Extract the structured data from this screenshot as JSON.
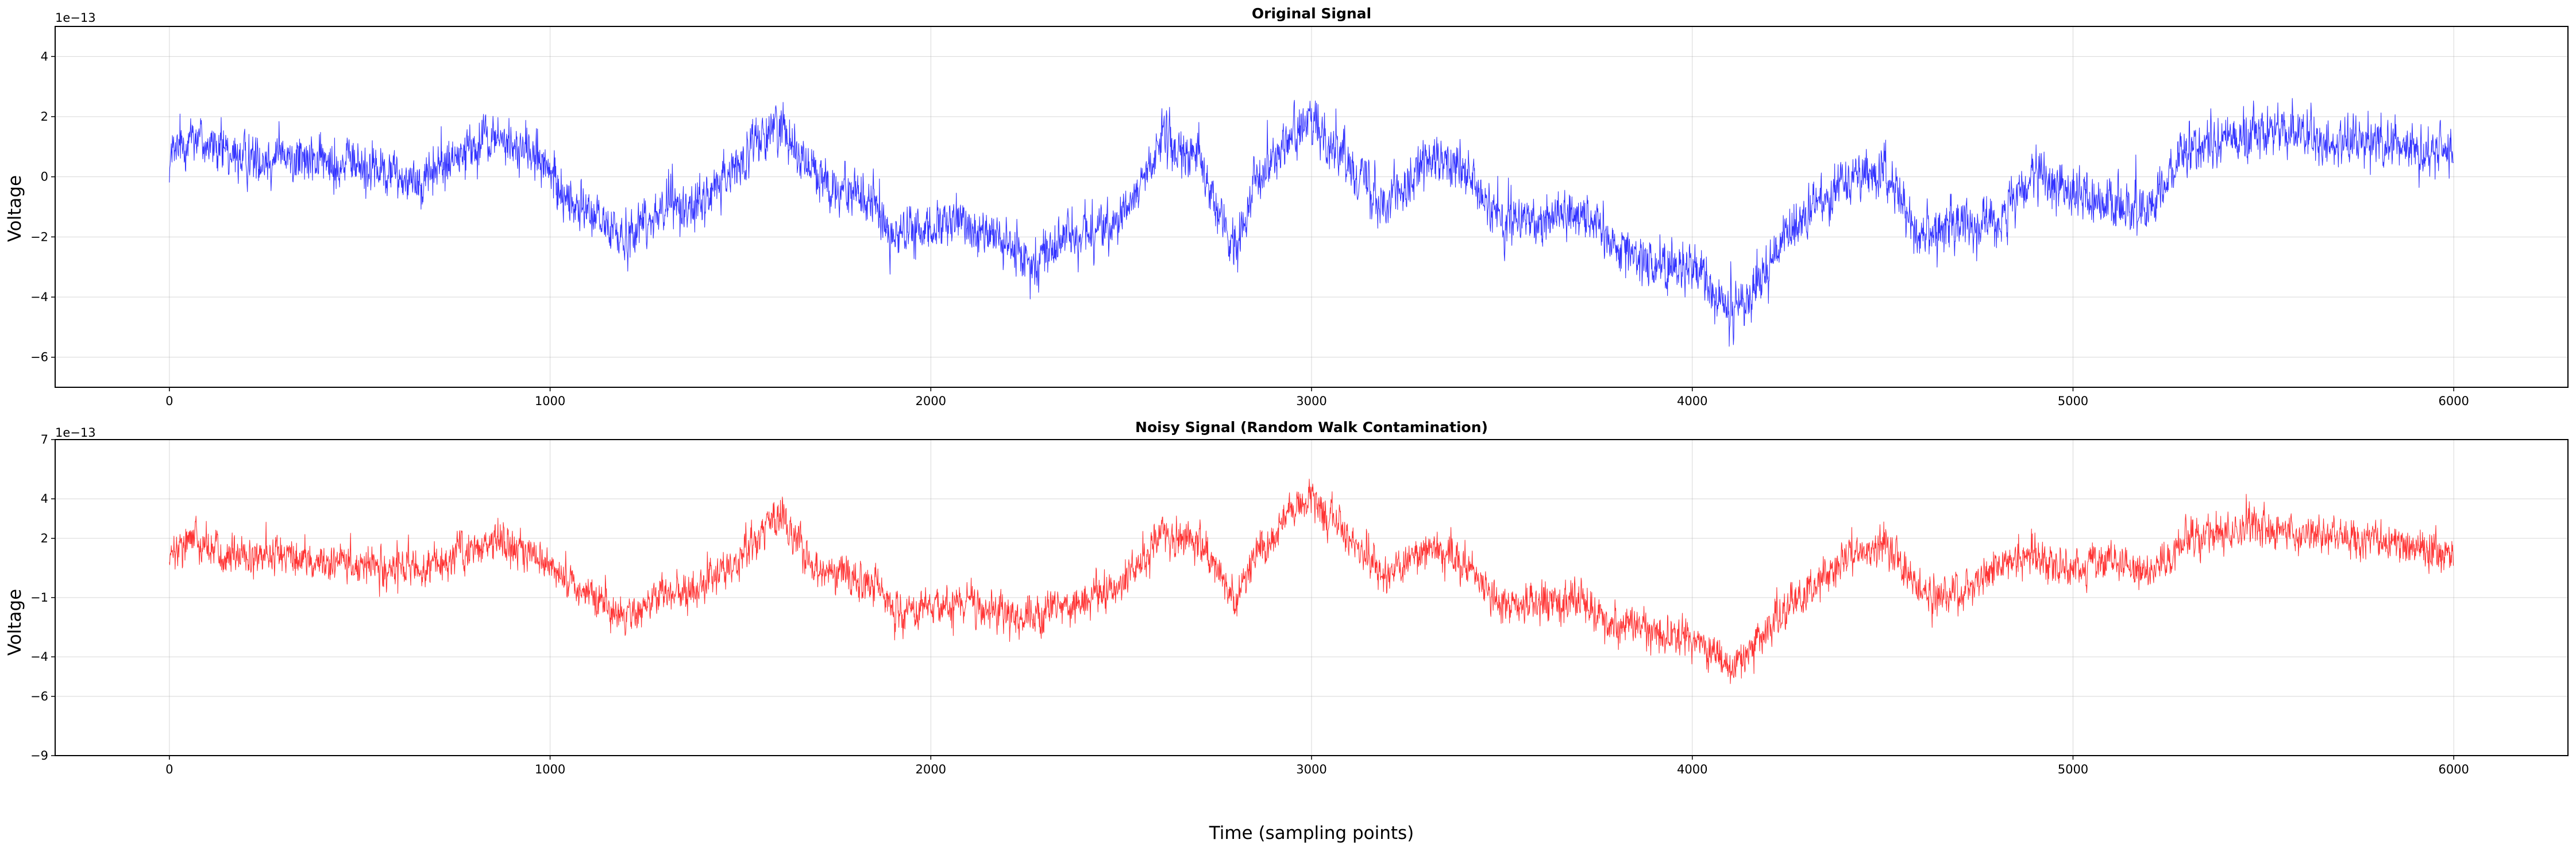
{
  "chart_data": [
    {
      "type": "line",
      "title": "Original Signal",
      "xlabel": "",
      "ylabel": "Voltage",
      "y_scale_label": "1e−13",
      "xlim": [
        -300,
        6300
      ],
      "ylim": [
        -7,
        5
      ],
      "xticks": [
        0,
        1000,
        2000,
        3000,
        4000,
        5000,
        6000
      ],
      "xtick_labels": [
        "0",
        "1000",
        "2000",
        "3000",
        "4000",
        "5000",
        "6000"
      ],
      "yticks": [
        4,
        2,
        0,
        -2,
        -4,
        -6
      ],
      "ytick_labels": [
        "4",
        "2",
        "0",
        "−2",
        "−4",
        "−6"
      ],
      "grid": true,
      "series": [
        {
          "color": "#0000ff",
          "n_points": 6000,
          "noise_amplitude": 1.15,
          "trend": [
            [
              0,
              0.5
            ],
            [
              60,
              1.5
            ],
            [
              150,
              0.6
            ],
            [
              300,
              0.6
            ],
            [
              500,
              0.4
            ],
            [
              650,
              -0.1
            ],
            [
              850,
              1.3
            ],
            [
              950,
              0.8
            ],
            [
              1050,
              -0.8
            ],
            [
              1200,
              -2.0
            ],
            [
              1300,
              -1.0
            ],
            [
              1400,
              -0.9
            ],
            [
              1500,
              0.5
            ],
            [
              1600,
              1.8
            ],
            [
              1700,
              0.0
            ],
            [
              1850,
              -0.9
            ],
            [
              1900,
              -2.0
            ],
            [
              2100,
              -1.5
            ],
            [
              2250,
              -2.8
            ],
            [
              2400,
              -1.8
            ],
            [
              2500,
              -1.6
            ],
            [
              2600,
              1.2
            ],
            [
              2700,
              0.6
            ],
            [
              2800,
              -2.5
            ],
            [
              2850,
              0.0
            ],
            [
              2950,
              1.4
            ],
            [
              3000,
              1.8
            ],
            [
              3100,
              0.5
            ],
            [
              3200,
              -0.9
            ],
            [
              3300,
              0.6
            ],
            [
              3400,
              0.2
            ],
            [
              3500,
              -1.6
            ],
            [
              3700,
              -1.1
            ],
            [
              3800,
              -2.2
            ],
            [
              3900,
              -2.9
            ],
            [
              4000,
              -3.0
            ],
            [
              4100,
              -4.6
            ],
            [
              4150,
              -4.0
            ],
            [
              4250,
              -2.0
            ],
            [
              4400,
              0.0
            ],
            [
              4500,
              0.1
            ],
            [
              4600,
              -1.9
            ],
            [
              4700,
              -1.5
            ],
            [
              4800,
              -1.5
            ],
            [
              4900,
              0.0
            ],
            [
              5000,
              -0.5
            ],
            [
              5100,
              -1.0
            ],
            [
              5200,
              -1.1
            ],
            [
              5300,
              1.0
            ],
            [
              5400,
              1.2
            ],
            [
              5500,
              1.6
            ],
            [
              5600,
              1.4
            ],
            [
              5700,
              1.0
            ],
            [
              5800,
              1.3
            ],
            [
              5900,
              1.0
            ],
            [
              6000,
              0.8
            ]
          ]
        }
      ]
    },
    {
      "type": "line",
      "title": "Noisy Signal (Random Walk Contamination)",
      "xlabel": "Time (sampling points)",
      "ylabel": "Voltage",
      "y_scale_label": "1e−13",
      "xlim": [
        -300,
        6300
      ],
      "ylim": [
        -9,
        7
      ],
      "xticks": [
        0,
        1000,
        2000,
        3000,
        4000,
        5000,
        6000
      ],
      "xtick_labels": [
        "0",
        "1000",
        "2000",
        "3000",
        "4000",
        "5000",
        "6000"
      ],
      "yticks": [
        7,
        4,
        2,
        -1,
        -4,
        -6,
        -9
      ],
      "ytick_labels": [
        "7",
        "4",
        "2",
        "−1",
        "−4",
        "−6",
        "−9"
      ],
      "grid": true,
      "series": [
        {
          "color": "#ff0000",
          "n_points": 6000,
          "noise_amplitude": 1.35,
          "trend": [
            [
              0,
              0.9
            ],
            [
              60,
              2.2
            ],
            [
              150,
              1.0
            ],
            [
              300,
              1.0
            ],
            [
              500,
              0.6
            ],
            [
              650,
              0.2
            ],
            [
              850,
              2.0
            ],
            [
              950,
              1.3
            ],
            [
              1050,
              -0.3
            ],
            [
              1200,
              -2.0
            ],
            [
              1300,
              -0.8
            ],
            [
              1400,
              -0.5
            ],
            [
              1500,
              1.0
            ],
            [
              1600,
              3.3
            ],
            [
              1700,
              0.5
            ],
            [
              1850,
              -0.2
            ],
            [
              1900,
              -1.8
            ],
            [
              2100,
              -1.3
            ],
            [
              2250,
              -2.2
            ],
            [
              2400,
              -1.0
            ],
            [
              2500,
              -0.5
            ],
            [
              2600,
              2.0
            ],
            [
              2700,
              2.0
            ],
            [
              2800,
              -1.2
            ],
            [
              2850,
              1.0
            ],
            [
              2950,
              3.6
            ],
            [
              3000,
              4.0
            ],
            [
              3100,
              2.0
            ],
            [
              3200,
              0.0
            ],
            [
              3300,
              1.5
            ],
            [
              3400,
              0.8
            ],
            [
              3500,
              -1.5
            ],
            [
              3700,
              -1.0
            ],
            [
              3800,
              -2.4
            ],
            [
              3900,
              -2.8
            ],
            [
              4000,
              -3.0
            ],
            [
              4100,
              -4.5
            ],
            [
              4150,
              -3.8
            ],
            [
              4250,
              -1.5
            ],
            [
              4400,
              1.0
            ],
            [
              4500,
              1.8
            ],
            [
              4600,
              -0.8
            ],
            [
              4700,
              -0.8
            ],
            [
              4800,
              0.5
            ],
            [
              4900,
              1.0
            ],
            [
              5000,
              0.5
            ],
            [
              5100,
              1.0
            ],
            [
              5200,
              0.0
            ],
            [
              5300,
              2.0
            ],
            [
              5400,
              2.2
            ],
            [
              5500,
              2.6
            ],
            [
              5600,
              2.2
            ],
            [
              5700,
              2.1
            ],
            [
              5800,
              2.0
            ],
            [
              5900,
              1.5
            ],
            [
              6000,
              1.2
            ]
          ]
        }
      ]
    }
  ]
}
